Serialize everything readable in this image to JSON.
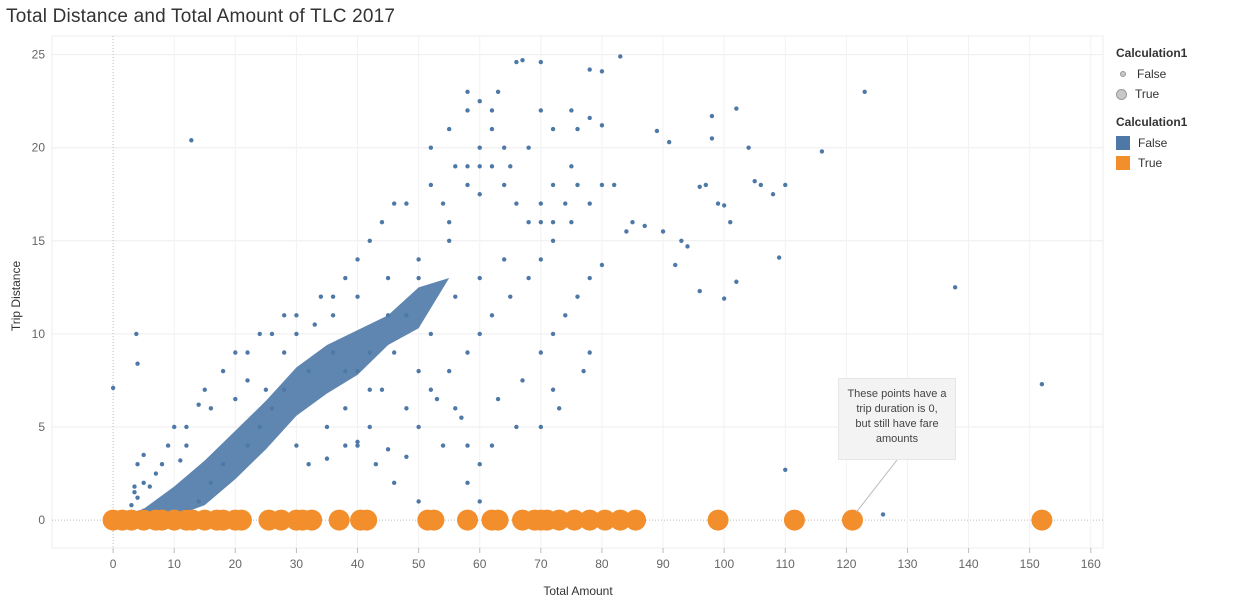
{
  "chart_data": {
    "type": "scatter",
    "title": "Total Distance and Total Amount of TLC 2017",
    "xlabel": "Total Amount",
    "ylabel": "Trip Distance",
    "xlim": [
      -10,
      162
    ],
    "ylim": [
      -1.5,
      26
    ],
    "xticks": [
      "0",
      "10",
      "20",
      "30",
      "40",
      "50",
      "60",
      "70",
      "80",
      "90",
      "100",
      "110",
      "120",
      "130",
      "140",
      "150",
      "160"
    ],
    "yticks": [
      "0",
      "5",
      "10",
      "15",
      "20",
      "25"
    ],
    "grid": true,
    "legend_position": "top-right",
    "legends": [
      {
        "title": "Calculation1",
        "kind": "size",
        "entries": [
          "False",
          "True"
        ]
      },
      {
        "title": "Calculation1",
        "kind": "color",
        "entries": [
          "False",
          "True"
        ]
      }
    ],
    "series": [
      {
        "name": "False",
        "color": "#4e79a7",
        "points": [
          [
            0,
            7.1
          ],
          [
            3.8,
            10
          ],
          [
            4,
            8.4
          ],
          [
            12.8,
            20.4
          ],
          [
            3.5,
            1.8
          ],
          [
            3.5,
            1.5
          ],
          [
            4,
            1.2
          ],
          [
            5,
            2
          ],
          [
            6,
            1.8
          ],
          [
            7,
            2.5
          ],
          [
            14,
            6.2
          ],
          [
            12,
            4
          ],
          [
            11,
            3.2
          ],
          [
            16,
            6
          ],
          [
            20,
            6.5
          ],
          [
            22,
            7.5
          ],
          [
            25,
            7
          ],
          [
            28,
            9
          ],
          [
            30,
            10
          ],
          [
            33,
            10.5
          ],
          [
            36,
            11
          ],
          [
            40,
            12
          ],
          [
            45,
            13
          ],
          [
            50,
            14
          ],
          [
            55,
            16
          ],
          [
            58,
            18
          ],
          [
            60,
            20
          ],
          [
            62,
            22
          ],
          [
            58,
            23
          ],
          [
            63,
            23
          ],
          [
            66,
            24.6
          ],
          [
            67,
            24.7
          ],
          [
            70,
            24.6
          ],
          [
            78,
            24.2
          ],
          [
            80,
            24.1
          ],
          [
            83,
            24.9
          ],
          [
            75,
            22
          ],
          [
            70,
            22
          ],
          [
            72,
            21
          ],
          [
            76,
            21
          ],
          [
            78,
            21.6
          ],
          [
            80,
            21.2
          ],
          [
            68,
            20
          ],
          [
            65,
            19
          ],
          [
            60,
            17.5
          ],
          [
            55,
            15
          ],
          [
            50,
            13
          ],
          [
            45,
            11
          ],
          [
            42,
            9
          ],
          [
            40,
            8
          ],
          [
            38,
            6
          ],
          [
            35,
            5
          ],
          [
            30,
            4
          ],
          [
            32,
            3
          ],
          [
            38,
            4
          ],
          [
            40,
            4
          ],
          [
            42,
            5
          ],
          [
            48,
            6
          ],
          [
            52,
            7
          ],
          [
            55,
            8
          ],
          [
            58,
            9
          ],
          [
            60,
            10
          ],
          [
            62,
            11
          ],
          [
            65,
            12
          ],
          [
            68,
            13
          ],
          [
            70,
            14
          ],
          [
            72,
            15
          ],
          [
            75,
            16
          ],
          [
            50,
            8
          ],
          [
            52,
            10
          ],
          [
            46,
            9
          ],
          [
            44,
            7
          ],
          [
            48,
            11
          ],
          [
            56,
            12
          ],
          [
            60,
            13
          ],
          [
            64,
            14
          ],
          [
            70,
            17
          ],
          [
            72,
            18
          ],
          [
            75,
            19
          ],
          [
            78,
            17
          ],
          [
            80,
            18
          ],
          [
            82,
            18
          ],
          [
            85,
            16
          ],
          [
            89,
            20.9
          ],
          [
            91,
            20.3
          ],
          [
            96,
            17.9
          ],
          [
            97,
            18
          ],
          [
            98,
            21.7
          ],
          [
            102,
            22.1
          ],
          [
            104,
            20
          ],
          [
            105,
            18.2
          ],
          [
            106,
            18
          ],
          [
            108,
            17.5
          ],
          [
            110,
            18
          ],
          [
            116,
            19.8
          ],
          [
            123,
            23
          ],
          [
            98,
            20.5
          ],
          [
            99,
            17
          ],
          [
            100,
            16.9
          ],
          [
            101,
            16
          ],
          [
            93,
            15
          ],
          [
            94,
            14.7
          ],
          [
            92,
            13.7
          ],
          [
            96,
            12.3
          ],
          [
            100,
            11.9
          ],
          [
            102,
            12.8
          ],
          [
            109,
            14.1
          ],
          [
            110,
            2.7
          ],
          [
            126,
            0.3
          ],
          [
            137.8,
            12.5
          ],
          [
            152,
            7.3
          ],
          [
            87,
            15.8
          ],
          [
            90,
            15.5
          ],
          [
            84,
            15.5
          ],
          [
            80,
            13.7
          ],
          [
            78,
            9
          ],
          [
            77,
            8
          ],
          [
            73,
            6
          ],
          [
            72,
            7
          ],
          [
            70,
            5
          ],
          [
            66,
            5
          ],
          [
            62,
            4
          ],
          [
            60,
            3
          ],
          [
            58,
            4
          ],
          [
            58,
            2
          ],
          [
            60,
            1
          ],
          [
            50,
            1
          ],
          [
            46,
            2
          ],
          [
            43,
            3
          ],
          [
            4,
            3
          ],
          [
            5,
            3.5
          ],
          [
            8,
            3
          ],
          [
            9,
            4
          ],
          [
            10,
            5
          ],
          [
            12,
            5
          ],
          [
            15,
            7
          ],
          [
            18,
            8
          ],
          [
            20,
            9
          ],
          [
            22,
            9
          ],
          [
            24,
            10
          ],
          [
            26,
            10
          ],
          [
            28,
            11
          ],
          [
            30,
            11
          ],
          [
            34,
            12
          ],
          [
            36,
            12
          ],
          [
            38,
            13
          ],
          [
            40,
            14
          ],
          [
            42,
            15
          ],
          [
            44,
            16
          ],
          [
            46,
            17
          ],
          [
            48,
            17
          ],
          [
            52,
            18
          ],
          [
            54,
            17
          ],
          [
            56,
            19
          ],
          [
            58,
            19
          ],
          [
            60,
            19
          ],
          [
            62,
            19
          ],
          [
            64,
            18
          ],
          [
            66,
            17
          ],
          [
            68,
            16
          ],
          [
            70,
            16
          ],
          [
            72,
            16
          ],
          [
            74,
            17
          ],
          [
            76,
            18
          ],
          [
            52,
            20
          ],
          [
            55,
            21
          ],
          [
            58,
            22
          ],
          [
            60,
            22.5
          ],
          [
            62,
            21
          ],
          [
            64,
            20
          ],
          [
            40,
            4.2
          ],
          [
            35,
            3.3
          ],
          [
            48,
            3.4
          ],
          [
            45,
            3.8
          ],
          [
            53,
            6.5
          ],
          [
            57,
            5.5
          ],
          [
            63,
            6.5
          ],
          [
            67,
            7.5
          ],
          [
            70,
            9
          ],
          [
            72,
            10
          ],
          [
            74,
            11
          ],
          [
            76,
            12
          ],
          [
            78,
            13
          ],
          [
            50,
            5
          ],
          [
            54,
            4
          ],
          [
            56,
            6
          ],
          [
            42,
            7
          ],
          [
            38,
            8
          ],
          [
            36,
            9
          ],
          [
            32,
            8
          ],
          [
            28,
            7
          ],
          [
            26,
            6
          ],
          [
            24,
            5
          ],
          [
            22,
            4
          ],
          [
            18,
            3
          ],
          [
            16,
            2
          ],
          [
            14,
            1
          ],
          [
            12,
            0.5
          ],
          [
            10,
            0.3
          ],
          [
            8,
            0.2
          ],
          [
            6,
            0.3
          ],
          [
            5,
            0.5
          ],
          [
            3,
            0.8
          ],
          [
            2.5,
            0.4
          ],
          [
            3,
            0.2
          ]
        ]
      },
      {
        "name": "True",
        "color": "#f28e2b",
        "points": [
          [
            0,
            0
          ],
          [
            1.5,
            0
          ],
          [
            3,
            0
          ],
          [
            5,
            0
          ],
          [
            7,
            0
          ],
          [
            8,
            0
          ],
          [
            10,
            0
          ],
          [
            12,
            0
          ],
          [
            13,
            0
          ],
          [
            15,
            0
          ],
          [
            17,
            0
          ],
          [
            18,
            0
          ],
          [
            20,
            0
          ],
          [
            21,
            0
          ],
          [
            25.5,
            0
          ],
          [
            27.5,
            0
          ],
          [
            30,
            0
          ],
          [
            31,
            0
          ],
          [
            32.5,
            0
          ],
          [
            37,
            0
          ],
          [
            40.5,
            0
          ],
          [
            41.5,
            0
          ],
          [
            51.5,
            0
          ],
          [
            52.5,
            0
          ],
          [
            58,
            0
          ],
          [
            62,
            0
          ],
          [
            63,
            0
          ],
          [
            67,
            0
          ],
          [
            69,
            0
          ],
          [
            70,
            0
          ],
          [
            71,
            0
          ],
          [
            73,
            0
          ],
          [
            75.5,
            0
          ],
          [
            78,
            0
          ],
          [
            80.5,
            0
          ],
          [
            83,
            0
          ],
          [
            85.5,
            0
          ],
          [
            99,
            0
          ],
          [
            111.5,
            0
          ],
          [
            121,
            0
          ],
          [
            152,
            0
          ]
        ]
      }
    ],
    "annotations": [
      {
        "lines": [
          "These points have a",
          "trip duration is 0,",
          "but still have fare",
          "amounts"
        ],
        "points_to": [
          121,
          0
        ]
      }
    ]
  }
}
